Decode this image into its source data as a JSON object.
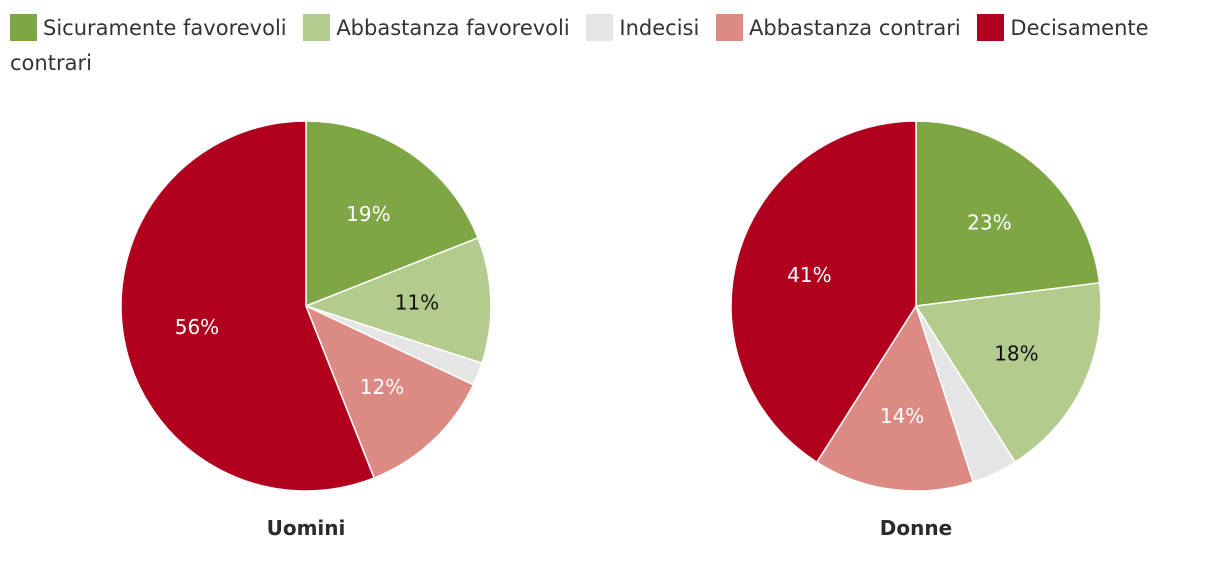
{
  "legend": {
    "items": [
      {
        "label": "Sicuramente favorevoli",
        "color": "#7ea644"
      },
      {
        "label": "Abbastanza favorevoli",
        "color": "#b3cc8e"
      },
      {
        "label": "Indecisi",
        "color": "#e5e5e5"
      },
      {
        "label": "Abbastanza contrari",
        "color": "#dc8a84"
      },
      {
        "label": "Decisamente contrari",
        "color": "#b0001e"
      }
    ]
  },
  "chart_data": [
    {
      "type": "pie",
      "title": "Uomini",
      "categories": [
        "Sicuramente favorevoli",
        "Abbastanza favorevoli",
        "Indecisi",
        "Abbastanza contrari",
        "Decisamente contrari"
      ],
      "values": [
        19,
        11,
        2,
        12,
        56
      ],
      "labels": [
        "19%",
        "11%",
        "",
        "12%",
        "56%"
      ],
      "label_colors": [
        "#ffffff",
        "#111111",
        "#111111",
        "#ffffff",
        "#ffffff"
      ]
    },
    {
      "type": "pie",
      "title": "Donne",
      "categories": [
        "Sicuramente favorevoli",
        "Abbastanza favorevoli",
        "Indecisi",
        "Abbastanza contrari",
        "Decisamente contrari"
      ],
      "values": [
        23,
        18,
        4,
        14,
        41
      ],
      "labels": [
        "23%",
        "18%",
        "",
        "14%",
        "41%"
      ],
      "label_colors": [
        "#ffffff",
        "#111111",
        "#111111",
        "#ffffff",
        "#ffffff"
      ]
    }
  ]
}
